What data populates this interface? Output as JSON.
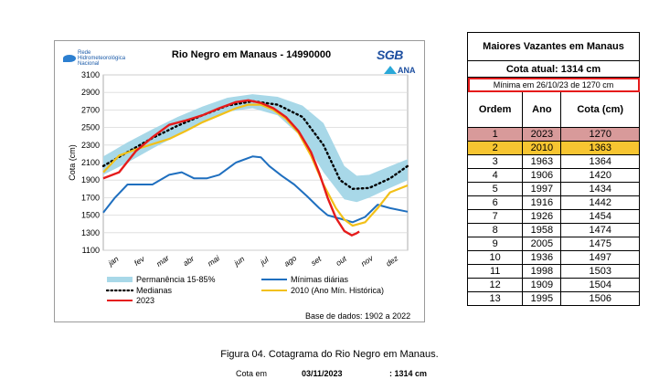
{
  "chart": {
    "title": "Rio Negro em Manaus - 14990000",
    "logo_left": "Rede Hidrometeorológica Nacional",
    "logo_sgb": "SGB",
    "logo_ana": "ANA",
    "base": "Base de dados: 1902 a 2022",
    "legend": [
      {
        "label": "Permanência 15-85%",
        "color": "#a8d8e8",
        "style": "band"
      },
      {
        "label": "Mínimas diárias",
        "color": "#1f6fbf",
        "style": "solid"
      },
      {
        "label": "Medianas",
        "color": "#000000",
        "style": "dotted"
      },
      {
        "label": "2010 (Ano Mín. Histórica)",
        "color": "#f2c018",
        "style": "solid"
      },
      {
        "label": "2023",
        "color": "#e51b1b",
        "style": "solid"
      }
    ]
  },
  "chart_data": {
    "type": "line",
    "title": "Rio Negro em Manaus - 14990000",
    "ylabel": "Cota (cm)",
    "xlabel": "",
    "ylim": [
      1100,
      3100
    ],
    "yticks": [
      1100,
      1300,
      1500,
      1700,
      1900,
      2100,
      2300,
      2500,
      2700,
      2900,
      3100
    ],
    "month_labels": [
      "jan",
      "fev",
      "mar",
      "abr",
      "mai",
      "jun",
      "jul",
      "ago",
      "set",
      "out",
      "nov",
      "dez"
    ],
    "xlim": [
      1,
      366
    ],
    "grid": true,
    "legend_position": "bottom",
    "band": {
      "name": "Permanência 15-85%",
      "x": [
        1,
        30,
        60,
        90,
        120,
        150,
        180,
        210,
        240,
        265,
        290,
        305,
        320,
        340,
        366
      ],
      "lower": [
        1960,
        2100,
        2260,
        2410,
        2560,
        2680,
        2720,
        2640,
        2380,
        1990,
        1680,
        1650,
        1700,
        1790,
        1900
      ],
      "upper": [
        2170,
        2330,
        2480,
        2620,
        2740,
        2840,
        2880,
        2850,
        2750,
        2550,
        2060,
        1950,
        1960,
        2040,
        2140
      ]
    },
    "series": [
      {
        "name": "Medianas",
        "color": "#000000",
        "x": [
          1,
          30,
          60,
          90,
          120,
          150,
          180,
          210,
          240,
          265,
          285,
          300,
          320,
          345,
          366
        ],
        "values": [
          2060,
          2220,
          2380,
          2520,
          2640,
          2750,
          2800,
          2760,
          2620,
          2300,
          1900,
          1800,
          1810,
          1920,
          2060
        ]
      },
      {
        "name": "Mínimas diárias",
        "color": "#1f6fbf",
        "x": [
          1,
          15,
          30,
          40,
          60,
          80,
          95,
          110,
          125,
          140,
          160,
          180,
          190,
          200,
          215,
          230,
          245,
          260,
          270,
          285,
          300,
          315,
          330,
          345,
          366
        ],
        "values": [
          1530,
          1700,
          1850,
          1850,
          1850,
          1960,
          1990,
          1920,
          1920,
          1960,
          2100,
          2170,
          2160,
          2060,
          1950,
          1850,
          1720,
          1580,
          1500,
          1460,
          1420,
          1480,
          1620,
          1580,
          1540
        ]
      },
      {
        "name": "2010 (Ano Mín. Histórica)",
        "color": "#f2c018",
        "x": [
          1,
          20,
          40,
          60,
          80,
          100,
          120,
          140,
          160,
          175,
          190,
          205,
          220,
          235,
          250,
          265,
          280,
          290,
          300,
          315,
          330,
          345,
          366
        ],
        "values": [
          1990,
          2180,
          2250,
          2310,
          2370,
          2460,
          2560,
          2640,
          2720,
          2760,
          2760,
          2700,
          2600,
          2440,
          2180,
          1850,
          1580,
          1450,
          1380,
          1420,
          1580,
          1760,
          1840
        ]
      },
      {
        "name": "2023",
        "color": "#e51b1b",
        "x": [
          1,
          20,
          40,
          60,
          80,
          100,
          120,
          140,
          160,
          175,
          190,
          205,
          220,
          235,
          250,
          260,
          270,
          280,
          290,
          299,
          305,
          308
        ],
        "values": [
          1920,
          1990,
          2230,
          2390,
          2530,
          2580,
          2640,
          2720,
          2790,
          2810,
          2780,
          2720,
          2620,
          2460,
          2220,
          1980,
          1700,
          1470,
          1320,
          1270,
          1295,
          1314
        ]
      }
    ]
  },
  "table": {
    "title": "Maiores Vazantes  em Manaus",
    "current": "Cota atual: 1314 cm",
    "minimum": "Mínima em 26/10/23 de 1270 cm",
    "headers": [
      "Ordem",
      "Ano",
      "Cota (cm)"
    ],
    "rows": [
      [
        "1",
        "2023",
        "1270"
      ],
      [
        "2",
        "2010",
        "1363"
      ],
      [
        "3",
        "1963",
        "1364"
      ],
      [
        "4",
        "1906",
        "1420"
      ],
      [
        "5",
        "1997",
        "1434"
      ],
      [
        "6",
        "1916",
        "1442"
      ],
      [
        "7",
        "1926",
        "1454"
      ],
      [
        "8",
        "1958",
        "1474"
      ],
      [
        "9",
        "2005",
        "1475"
      ],
      [
        "10",
        "1936",
        "1497"
      ],
      [
        "11",
        "1998",
        "1503"
      ],
      [
        "12",
        "1909",
        "1504"
      ],
      [
        "13",
        "1995",
        "1506"
      ]
    ]
  },
  "footer": {
    "caption": "Figura 04. Cotagrama do Rio Negro em Manaus.",
    "cota_label": "Cota em",
    "cota_date": "03/11/2023",
    "cota_value": ": 1314 cm"
  }
}
